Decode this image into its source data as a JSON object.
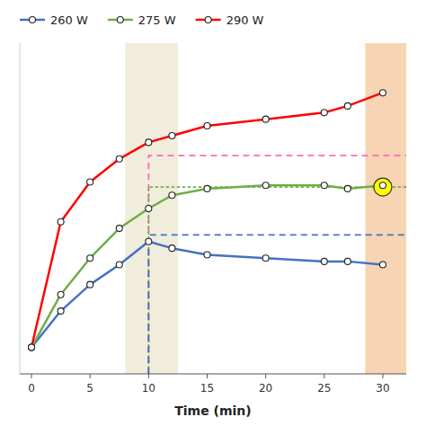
{
  "chart_data": {
    "type": "line",
    "x_label": "Time (min)",
    "x": [
      0,
      2.5,
      5,
      7.5,
      10,
      12,
      15,
      20,
      25,
      27,
      30
    ],
    "series": [
      {
        "name": "260 W",
        "color": "#4472C4",
        "values": [
          0.08,
          0.19,
          0.27,
          0.33,
          0.4,
          0.38,
          0.36,
          0.35,
          0.34,
          0.34,
          0.33
        ]
      },
      {
        "name": "275 W",
        "color": "#70AD47",
        "values": [
          0.08,
          0.24,
          0.35,
          0.44,
          0.5,
          0.54,
          0.56,
          0.57,
          0.57,
          0.56,
          0.57
        ]
      },
      {
        "name": "290 W",
        "color": "#FF0000",
        "values": [
          0.08,
          0.46,
          0.58,
          0.65,
          0.7,
          0.72,
          0.75,
          0.77,
          0.79,
          0.81,
          0.85
        ]
      }
    ],
    "xlim": [
      -1,
      32
    ],
    "ylim": [
      0,
      1
    ],
    "xticks": [
      0,
      5,
      10,
      15,
      20,
      25,
      30
    ],
    "marker": "circle",
    "grid": false,
    "legend": "top",
    "tick_labels": "x",
    "shaded_regions": [
      {
        "x": [
          8.0,
          12.5
        ],
        "color": "#EEE8D5"
      },
      {
        "x": [
          28.5,
          32.5
        ],
        "color": "#F5C9A0"
      }
    ],
    "reference_lines": [
      {
        "x": 10,
        "x_end": 32,
        "y": 0.66,
        "color": "#FF69B4",
        "line_style": "dashed"
      },
      {
        "x": 10,
        "x_end": 32,
        "y": 0.565,
        "color": "#70AD47",
        "line_style": "dotted"
      },
      {
        "x": 10,
        "x_end": 32,
        "y": 0.42,
        "color": "#4472C4",
        "line_style": "dashed"
      }
    ],
    "highlight": {
      "x": 30,
      "y": 0.565,
      "color": "yellow"
    }
  }
}
